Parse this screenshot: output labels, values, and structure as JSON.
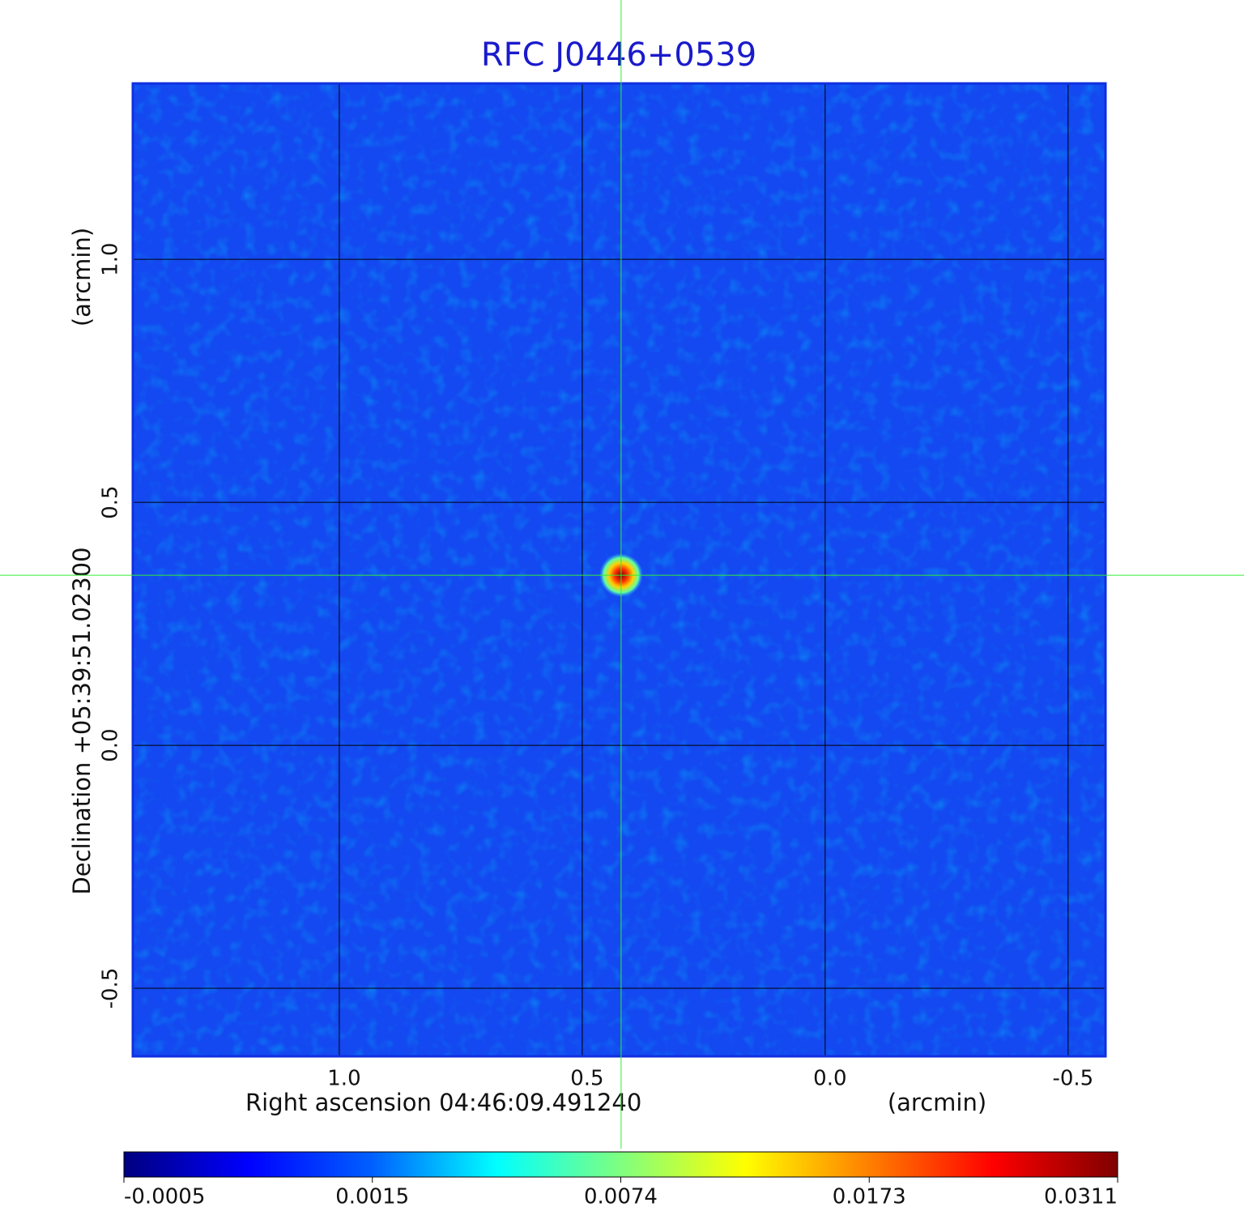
{
  "chart_data": {
    "type": "image",
    "title": "RFC J0446+0539",
    "xlabel": "Right ascension  04:46:09.491240",
    "xunit": "(arcmin)",
    "ylabel": "Declination  +05:39:51.02300",
    "yunit": "(arcmin)",
    "xlim": [
      1.425,
      -0.577
    ],
    "ylim": [
      -0.64,
      1.362
    ],
    "xticks": [
      {
        "value": 1,
        "label": "1.0"
      },
      0.5,
      {
        "value": 0,
        "label": "0.0"
      },
      -0.5
    ],
    "yticks": [
      {
        "value": 1,
        "label": "1.0"
      },
      0.5,
      {
        "value": 0,
        "label": "0.0"
      },
      -0.5
    ],
    "grid": true,
    "colormap": "jet",
    "source": {
      "x": 0.42,
      "y": 0.35,
      "value": 0.0311
    },
    "crosshair": {
      "x": 0.42,
      "y": 0.35
    },
    "colorbar_ticks": [
      -0.0005,
      0.0015,
      0.0074,
      0.0173,
      0.0311
    ]
  }
}
